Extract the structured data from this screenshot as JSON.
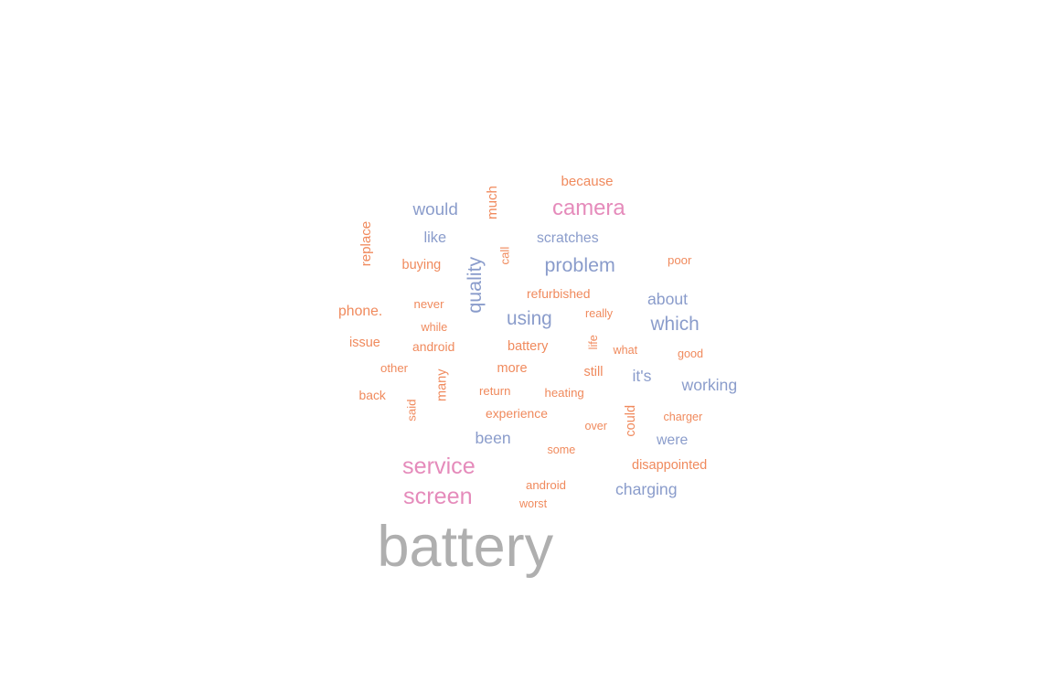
{
  "colors": {
    "orange": "#f08a5d",
    "blue": "#8a9ccb",
    "pink": "#e58bbb",
    "gray": "#afafaf"
  },
  "chart_data": {
    "type": "wordcloud",
    "words": [
      {
        "text": "battery",
        "weight": 100,
        "color": "gray",
        "rotation": 0
      },
      {
        "text": "service",
        "weight": 40,
        "color": "pink",
        "rotation": 0
      },
      {
        "text": "screen",
        "weight": 40,
        "color": "pink",
        "rotation": 0
      },
      {
        "text": "camera",
        "weight": 38,
        "color": "pink",
        "rotation": 0
      },
      {
        "text": "quality",
        "weight": 34,
        "color": "blue",
        "rotation": -90
      },
      {
        "text": "problem",
        "weight": 34,
        "color": "blue",
        "rotation": 0
      },
      {
        "text": "using",
        "weight": 33,
        "color": "blue",
        "rotation": 0
      },
      {
        "text": "which",
        "weight": 33,
        "color": "blue",
        "rotation": 0
      },
      {
        "text": "would",
        "weight": 30,
        "color": "blue",
        "rotation": 0
      },
      {
        "text": "about",
        "weight": 28,
        "color": "blue",
        "rotation": 0
      },
      {
        "text": "it's",
        "weight": 28,
        "color": "blue",
        "rotation": 0
      },
      {
        "text": "working",
        "weight": 28,
        "color": "blue",
        "rotation": 0
      },
      {
        "text": "been",
        "weight": 28,
        "color": "blue",
        "rotation": 0
      },
      {
        "text": "charging",
        "weight": 28,
        "color": "blue",
        "rotation": 0
      },
      {
        "text": "like",
        "weight": 26,
        "color": "blue",
        "rotation": 0
      },
      {
        "text": "scratches",
        "weight": 25,
        "color": "blue",
        "rotation": 0
      },
      {
        "text": "were",
        "weight": 25,
        "color": "blue",
        "rotation": 0
      },
      {
        "text": "phone.",
        "weight": 25,
        "color": "orange",
        "rotation": 0
      },
      {
        "text": "because",
        "weight": 24,
        "color": "orange",
        "rotation": 0
      },
      {
        "text": "replace",
        "weight": 24,
        "color": "orange",
        "rotation": -90
      },
      {
        "text": "much",
        "weight": 24,
        "color": "orange",
        "rotation": -90
      },
      {
        "text": "issue",
        "weight": 23,
        "color": "orange",
        "rotation": 0
      },
      {
        "text": "buying",
        "weight": 23,
        "color": "orange",
        "rotation": 0
      },
      {
        "text": "battery",
        "weight": 23,
        "color": "orange",
        "rotation": 0
      },
      {
        "text": "more",
        "weight": 23,
        "color": "orange",
        "rotation": 0
      },
      {
        "text": "still",
        "weight": 23,
        "color": "orange",
        "rotation": 0
      },
      {
        "text": "many",
        "weight": 23,
        "color": "orange",
        "rotation": -90
      },
      {
        "text": "could",
        "weight": 23,
        "color": "orange",
        "rotation": -90
      },
      {
        "text": "disappointed",
        "weight": 23,
        "color": "orange",
        "rotation": 0
      },
      {
        "text": "refurbished",
        "weight": 22,
        "color": "orange",
        "rotation": 0
      },
      {
        "text": "back",
        "weight": 22,
        "color": "orange",
        "rotation": 0
      },
      {
        "text": "android",
        "weight": 22,
        "color": "orange",
        "rotation": 0
      },
      {
        "text": "experience",
        "weight": 22,
        "color": "orange",
        "rotation": 0
      },
      {
        "text": "poor",
        "weight": 21,
        "color": "orange",
        "rotation": 0
      },
      {
        "text": "never",
        "weight": 21,
        "color": "orange",
        "rotation": 0
      },
      {
        "text": "other",
        "weight": 21,
        "color": "orange",
        "rotation": 0
      },
      {
        "text": "android",
        "weight": 21,
        "color": "orange",
        "rotation": 0
      },
      {
        "text": "return",
        "weight": 21,
        "color": "orange",
        "rotation": 0
      },
      {
        "text": "heating",
        "weight": 21,
        "color": "orange",
        "rotation": 0
      },
      {
        "text": "said",
        "weight": 21,
        "color": "orange",
        "rotation": -90
      },
      {
        "text": "call",
        "weight": 21,
        "color": "orange",
        "rotation": -90
      },
      {
        "text": "charger",
        "weight": 20,
        "color": "orange",
        "rotation": 0
      },
      {
        "text": "some",
        "weight": 20,
        "color": "orange",
        "rotation": 0
      },
      {
        "text": "good",
        "weight": 20,
        "color": "orange",
        "rotation": 0
      },
      {
        "text": "really",
        "weight": 20,
        "color": "orange",
        "rotation": 0
      },
      {
        "text": "while",
        "weight": 20,
        "color": "orange",
        "rotation": 0
      },
      {
        "text": "over",
        "weight": 20,
        "color": "orange",
        "rotation": 0
      },
      {
        "text": "what",
        "weight": 20,
        "color": "orange",
        "rotation": 0
      },
      {
        "text": "life",
        "weight": 20,
        "color": "orange",
        "rotation": -90
      },
      {
        "text": "worst",
        "weight": 20,
        "color": "orange",
        "rotation": 0
      }
    ]
  }
}
